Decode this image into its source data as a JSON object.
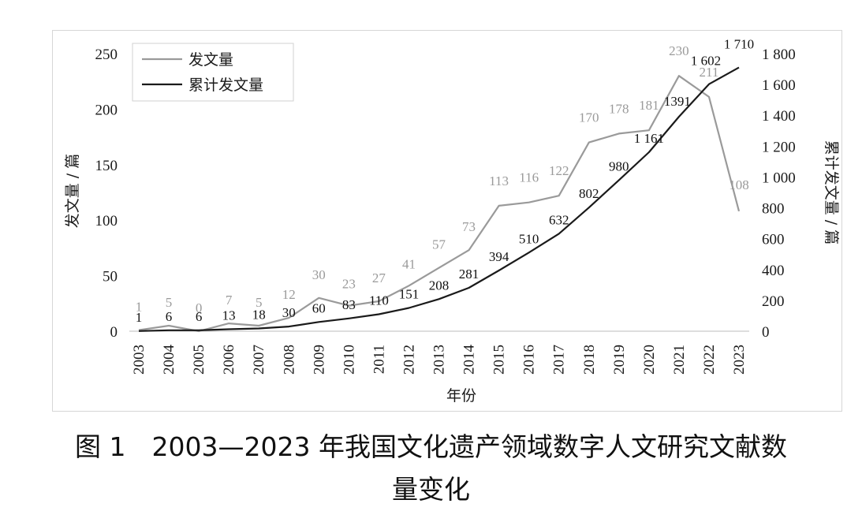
{
  "chart_data": {
    "type": "line",
    "x": [
      "2003",
      "2004",
      "2005",
      "2006",
      "2007",
      "2008",
      "2009",
      "2010",
      "2011",
      "2012",
      "2013",
      "2014",
      "2015",
      "2016",
      "2017",
      "2018",
      "2019",
      "2020",
      "2021",
      "2022",
      "2023"
    ],
    "series": [
      {
        "name": "发文量",
        "axis": "left",
        "color": "#9a9a9a",
        "values": [
          1,
          5,
          0,
          7,
          5,
          12,
          30,
          23,
          27,
          41,
          57,
          73,
          113,
          116,
          122,
          170,
          178,
          181,
          230,
          211,
          108
        ],
        "labels": [
          "1",
          "5",
          "0",
          "7",
          "5",
          "12",
          "30",
          "23",
          "27",
          "41",
          "57",
          "73",
          "113",
          "116",
          "122",
          "170",
          "178",
          "181",
          "230",
          "211",
          "108"
        ]
      },
      {
        "name": "累计发文量",
        "axis": "right",
        "color": "#1a1a1a",
        "values": [
          1,
          6,
          6,
          13,
          18,
          30,
          60,
          83,
          110,
          151,
          208,
          281,
          394,
          510,
          632,
          802,
          980,
          1161,
          1391,
          1602,
          1710
        ],
        "labels": [
          "1",
          "6",
          "6",
          "13",
          "18",
          "30",
          "60",
          "83",
          "110",
          "151",
          "208",
          "281",
          "394",
          "510",
          "632",
          "802",
          "980",
          "1 161",
          "1391",
          "1 602",
          "1 710"
        ]
      }
    ],
    "xlabel": "年份",
    "ylabel": "发文量 / 篇",
    "y2label": "累计发文量 / 篇",
    "ylim": [
      0,
      250
    ],
    "y2lim": [
      0,
      1800
    ],
    "yticks": [
      "0",
      "50",
      "100",
      "150",
      "200",
      "250"
    ],
    "y2ticks": [
      "0",
      "200",
      "400",
      "600",
      "800",
      "1 000",
      "1 200",
      "1 400",
      "1 600",
      "1 800"
    ],
    "grid": false,
    "legend": "top-left"
  },
  "caption": {
    "line1": "图 1　2003—2023 年我国文化遗产领域数字人文研究文献数",
    "line2": "量变化"
  }
}
